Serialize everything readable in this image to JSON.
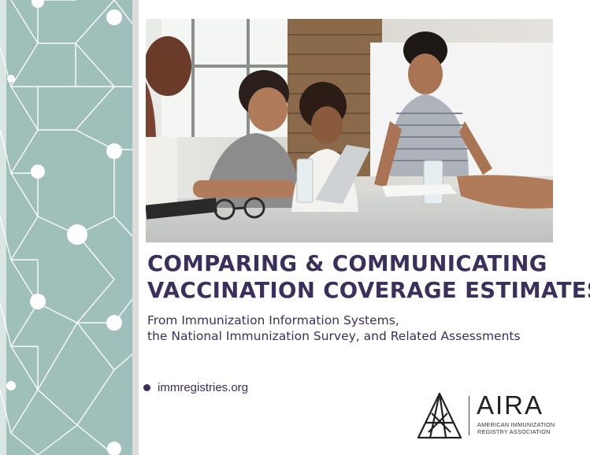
{
  "brand": {
    "accent_color": "#3b2f5c",
    "pattern_color": "#9fbfbb",
    "logo_acronym": "AIRA",
    "logo_name_line1": "AMERICAN IMMUNIZATION",
    "logo_name_line2": "REGISTRY ASSOCIATION"
  },
  "cover": {
    "title_line1": "COMPARING & COMMUNICATING",
    "title_line2": "VACCINATION COVERAGE ESTIMATES",
    "subtitle_line1": "From Immunization Information Systems,",
    "subtitle_line2": "the National Immunization Survey, and Related Assessments",
    "website": "immregistries.org"
  },
  "icons": {
    "pattern": "hexagon-network-pattern",
    "bullet": "bullet-dot-icon",
    "logo": "aira-logo-icon"
  }
}
